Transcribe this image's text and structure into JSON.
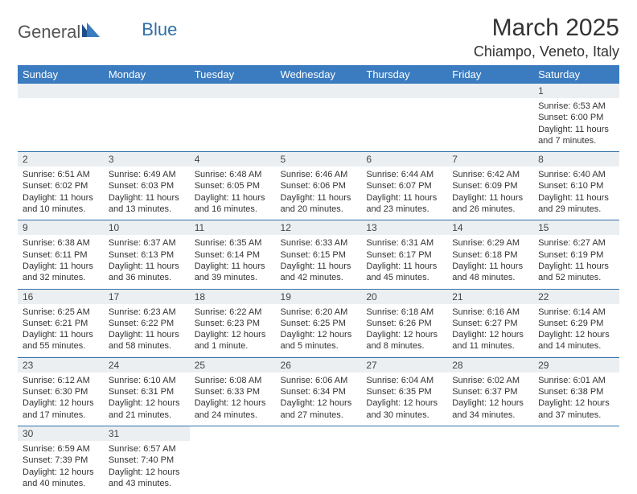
{
  "brand": {
    "part1": "General",
    "part2": "Blue"
  },
  "title": "March 2025",
  "location": "Chiampo, Veneto, Italy",
  "colors": {
    "header_bg": "#3b7bbf",
    "header_text": "#ffffff",
    "daynum_bg": "#eceff1",
    "border": "#2f6fa8",
    "text": "#333333",
    "brand_gray": "#555555",
    "brand_blue": "#2f6fa8"
  },
  "day_headers": [
    "Sunday",
    "Monday",
    "Tuesday",
    "Wednesday",
    "Thursday",
    "Friday",
    "Saturday"
  ],
  "weeks": [
    [
      null,
      null,
      null,
      null,
      null,
      null,
      {
        "n": "1",
        "sr": "Sunrise: 6:53 AM",
        "ss": "Sunset: 6:00 PM",
        "dl1": "Daylight: 11 hours",
        "dl2": "and 7 minutes."
      }
    ],
    [
      {
        "n": "2",
        "sr": "Sunrise: 6:51 AM",
        "ss": "Sunset: 6:02 PM",
        "dl1": "Daylight: 11 hours",
        "dl2": "and 10 minutes."
      },
      {
        "n": "3",
        "sr": "Sunrise: 6:49 AM",
        "ss": "Sunset: 6:03 PM",
        "dl1": "Daylight: 11 hours",
        "dl2": "and 13 minutes."
      },
      {
        "n": "4",
        "sr": "Sunrise: 6:48 AM",
        "ss": "Sunset: 6:05 PM",
        "dl1": "Daylight: 11 hours",
        "dl2": "and 16 minutes."
      },
      {
        "n": "5",
        "sr": "Sunrise: 6:46 AM",
        "ss": "Sunset: 6:06 PM",
        "dl1": "Daylight: 11 hours",
        "dl2": "and 20 minutes."
      },
      {
        "n": "6",
        "sr": "Sunrise: 6:44 AM",
        "ss": "Sunset: 6:07 PM",
        "dl1": "Daylight: 11 hours",
        "dl2": "and 23 minutes."
      },
      {
        "n": "7",
        "sr": "Sunrise: 6:42 AM",
        "ss": "Sunset: 6:09 PM",
        "dl1": "Daylight: 11 hours",
        "dl2": "and 26 minutes."
      },
      {
        "n": "8",
        "sr": "Sunrise: 6:40 AM",
        "ss": "Sunset: 6:10 PM",
        "dl1": "Daylight: 11 hours",
        "dl2": "and 29 minutes."
      }
    ],
    [
      {
        "n": "9",
        "sr": "Sunrise: 6:38 AM",
        "ss": "Sunset: 6:11 PM",
        "dl1": "Daylight: 11 hours",
        "dl2": "and 32 minutes."
      },
      {
        "n": "10",
        "sr": "Sunrise: 6:37 AM",
        "ss": "Sunset: 6:13 PM",
        "dl1": "Daylight: 11 hours",
        "dl2": "and 36 minutes."
      },
      {
        "n": "11",
        "sr": "Sunrise: 6:35 AM",
        "ss": "Sunset: 6:14 PM",
        "dl1": "Daylight: 11 hours",
        "dl2": "and 39 minutes."
      },
      {
        "n": "12",
        "sr": "Sunrise: 6:33 AM",
        "ss": "Sunset: 6:15 PM",
        "dl1": "Daylight: 11 hours",
        "dl2": "and 42 minutes."
      },
      {
        "n": "13",
        "sr": "Sunrise: 6:31 AM",
        "ss": "Sunset: 6:17 PM",
        "dl1": "Daylight: 11 hours",
        "dl2": "and 45 minutes."
      },
      {
        "n": "14",
        "sr": "Sunrise: 6:29 AM",
        "ss": "Sunset: 6:18 PM",
        "dl1": "Daylight: 11 hours",
        "dl2": "and 48 minutes."
      },
      {
        "n": "15",
        "sr": "Sunrise: 6:27 AM",
        "ss": "Sunset: 6:19 PM",
        "dl1": "Daylight: 11 hours",
        "dl2": "and 52 minutes."
      }
    ],
    [
      {
        "n": "16",
        "sr": "Sunrise: 6:25 AM",
        "ss": "Sunset: 6:21 PM",
        "dl1": "Daylight: 11 hours",
        "dl2": "and 55 minutes."
      },
      {
        "n": "17",
        "sr": "Sunrise: 6:23 AM",
        "ss": "Sunset: 6:22 PM",
        "dl1": "Daylight: 11 hours",
        "dl2": "and 58 minutes."
      },
      {
        "n": "18",
        "sr": "Sunrise: 6:22 AM",
        "ss": "Sunset: 6:23 PM",
        "dl1": "Daylight: 12 hours",
        "dl2": "and 1 minute."
      },
      {
        "n": "19",
        "sr": "Sunrise: 6:20 AM",
        "ss": "Sunset: 6:25 PM",
        "dl1": "Daylight: 12 hours",
        "dl2": "and 5 minutes."
      },
      {
        "n": "20",
        "sr": "Sunrise: 6:18 AM",
        "ss": "Sunset: 6:26 PM",
        "dl1": "Daylight: 12 hours",
        "dl2": "and 8 minutes."
      },
      {
        "n": "21",
        "sr": "Sunrise: 6:16 AM",
        "ss": "Sunset: 6:27 PM",
        "dl1": "Daylight: 12 hours",
        "dl2": "and 11 minutes."
      },
      {
        "n": "22",
        "sr": "Sunrise: 6:14 AM",
        "ss": "Sunset: 6:29 PM",
        "dl1": "Daylight: 12 hours",
        "dl2": "and 14 minutes."
      }
    ],
    [
      {
        "n": "23",
        "sr": "Sunrise: 6:12 AM",
        "ss": "Sunset: 6:30 PM",
        "dl1": "Daylight: 12 hours",
        "dl2": "and 17 minutes."
      },
      {
        "n": "24",
        "sr": "Sunrise: 6:10 AM",
        "ss": "Sunset: 6:31 PM",
        "dl1": "Daylight: 12 hours",
        "dl2": "and 21 minutes."
      },
      {
        "n": "25",
        "sr": "Sunrise: 6:08 AM",
        "ss": "Sunset: 6:33 PM",
        "dl1": "Daylight: 12 hours",
        "dl2": "and 24 minutes."
      },
      {
        "n": "26",
        "sr": "Sunrise: 6:06 AM",
        "ss": "Sunset: 6:34 PM",
        "dl1": "Daylight: 12 hours",
        "dl2": "and 27 minutes."
      },
      {
        "n": "27",
        "sr": "Sunrise: 6:04 AM",
        "ss": "Sunset: 6:35 PM",
        "dl1": "Daylight: 12 hours",
        "dl2": "and 30 minutes."
      },
      {
        "n": "28",
        "sr": "Sunrise: 6:02 AM",
        "ss": "Sunset: 6:37 PM",
        "dl1": "Daylight: 12 hours",
        "dl2": "and 34 minutes."
      },
      {
        "n": "29",
        "sr": "Sunrise: 6:01 AM",
        "ss": "Sunset: 6:38 PM",
        "dl1": "Daylight: 12 hours",
        "dl2": "and 37 minutes."
      }
    ],
    [
      {
        "n": "30",
        "sr": "Sunrise: 6:59 AM",
        "ss": "Sunset: 7:39 PM",
        "dl1": "Daylight: 12 hours",
        "dl2": "and 40 minutes."
      },
      {
        "n": "31",
        "sr": "Sunrise: 6:57 AM",
        "ss": "Sunset: 7:40 PM",
        "dl1": "Daylight: 12 hours",
        "dl2": "and 43 minutes."
      },
      null,
      null,
      null,
      null,
      null
    ]
  ]
}
